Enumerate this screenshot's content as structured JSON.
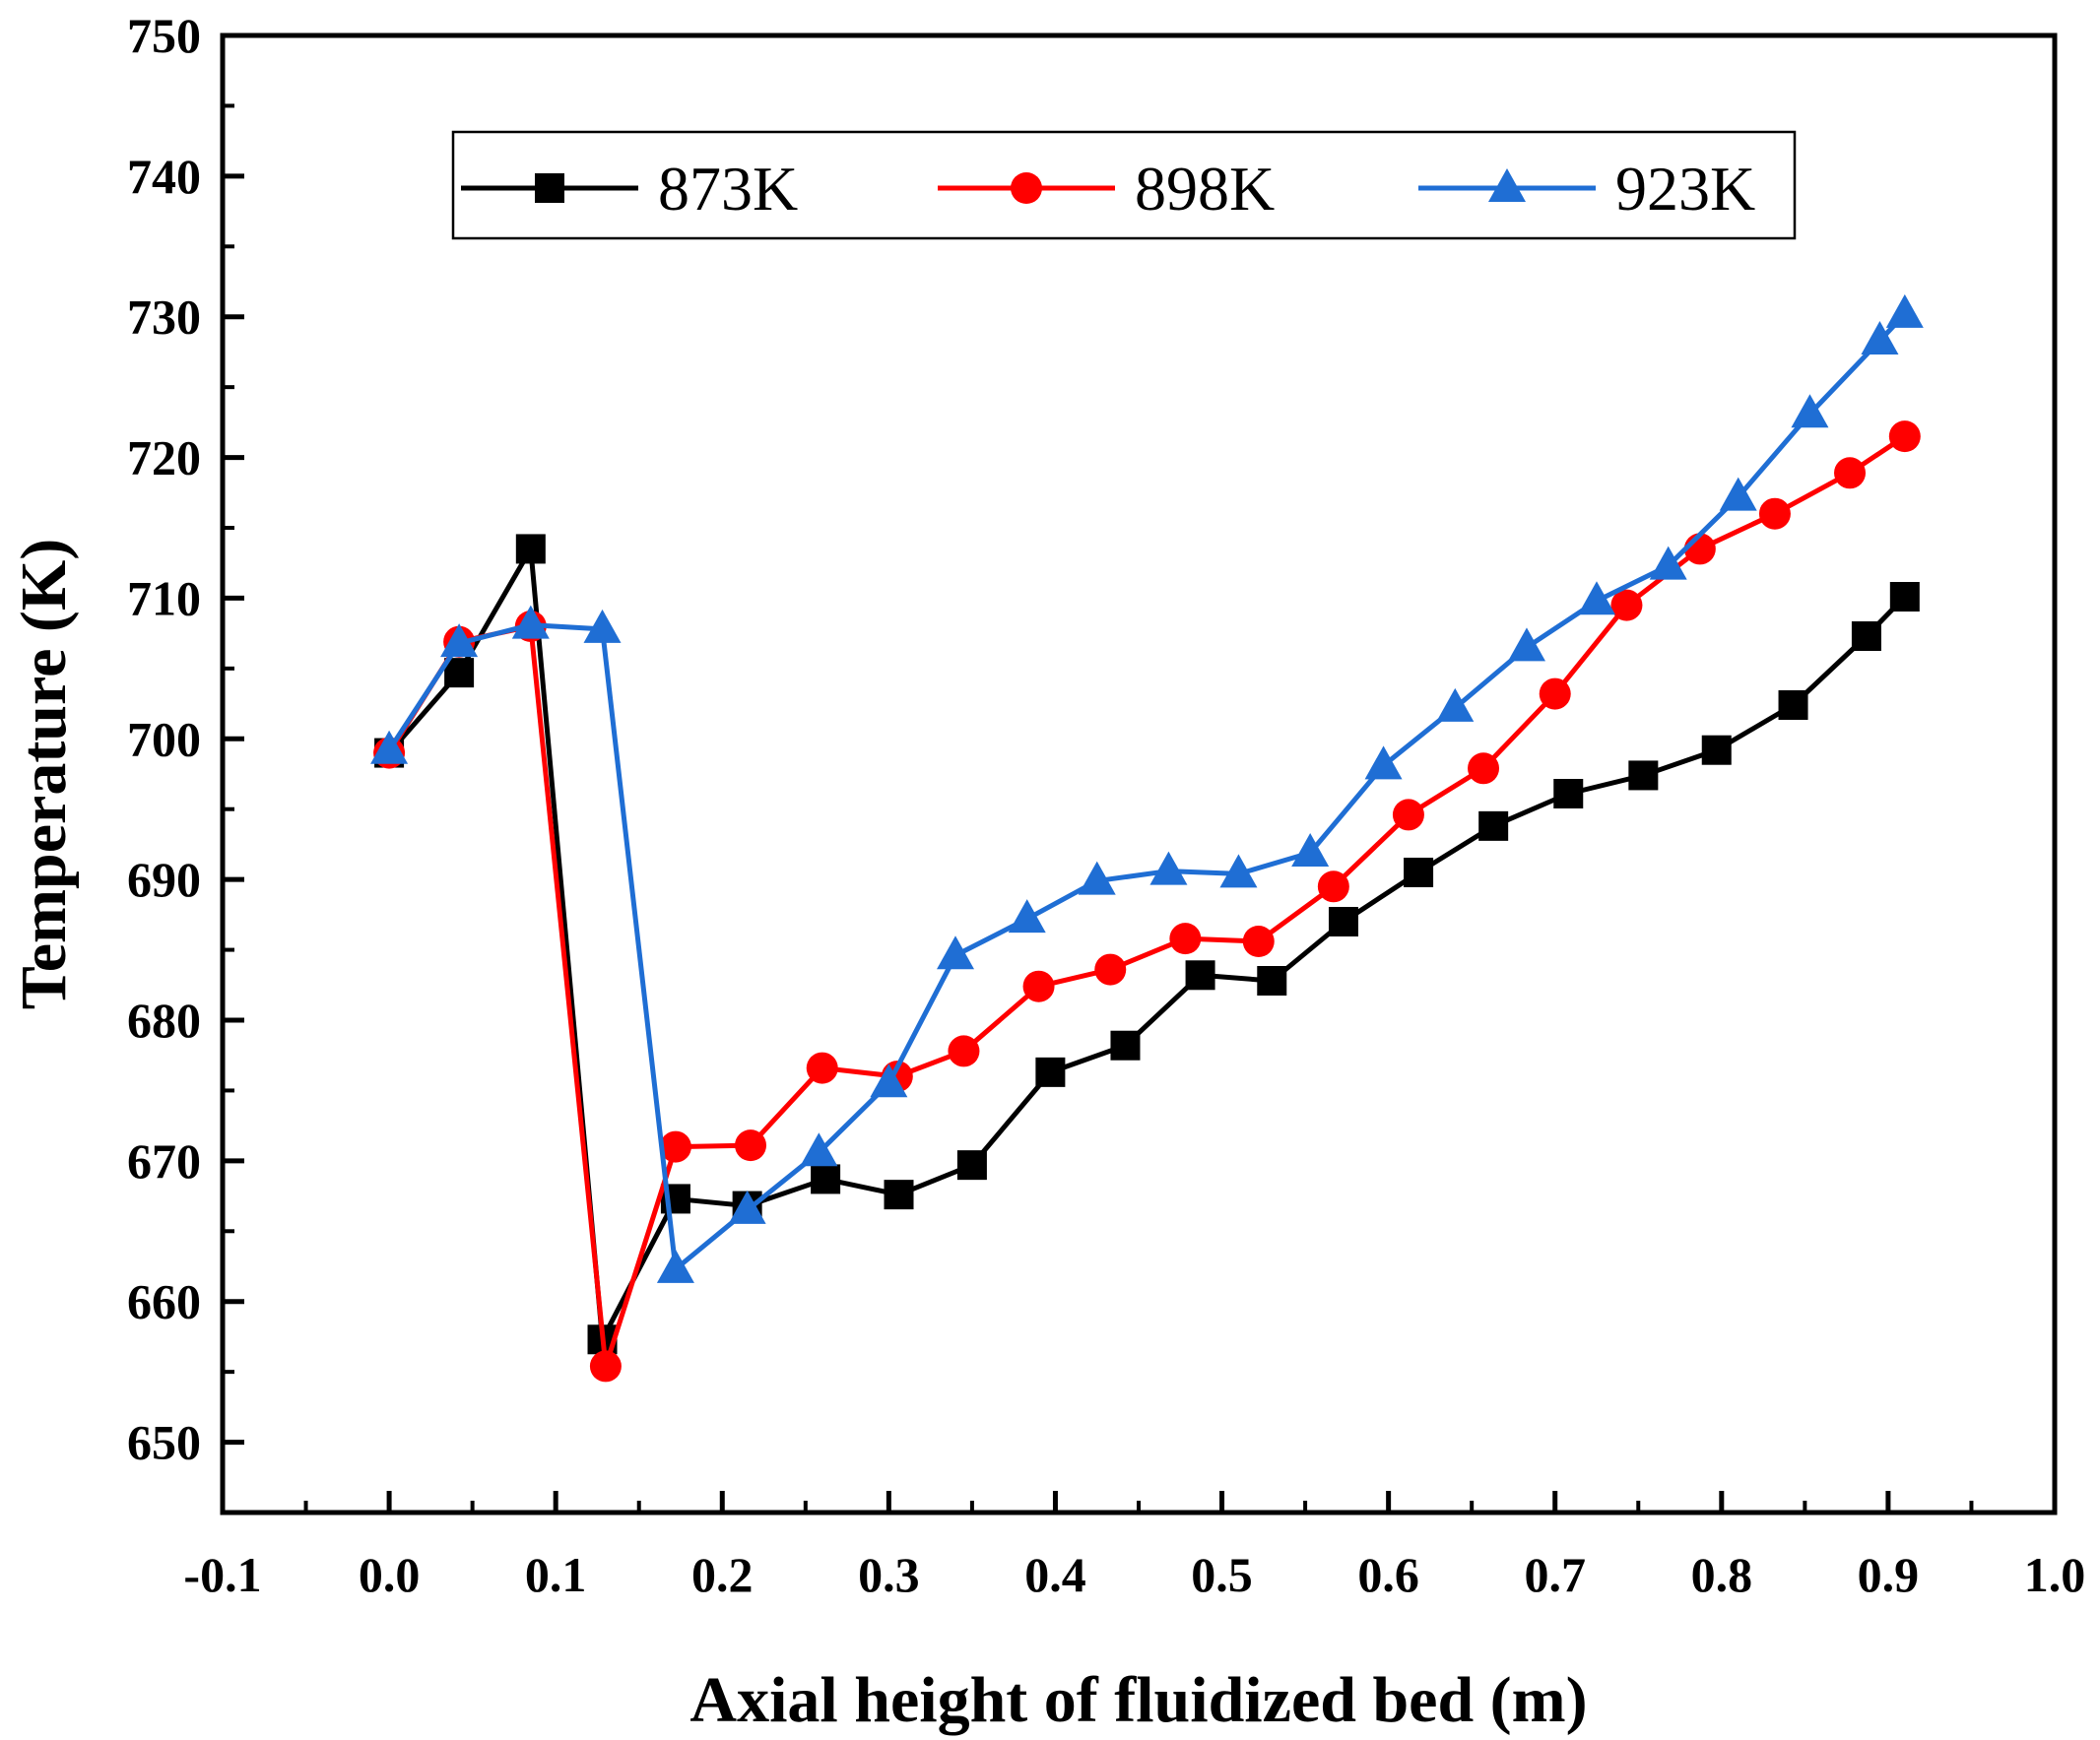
{
  "chart_data": {
    "type": "line",
    "title": "",
    "xlabel": "Axial height of fluidized bed (m)",
    "ylabel": "Temperature (K)",
    "xlim": [
      -0.1,
      1.0
    ],
    "ylim": [
      645,
      750
    ],
    "xticks": [
      -0.1,
      0.0,
      0.1,
      0.2,
      0.3,
      0.4,
      0.5,
      0.6,
      0.7,
      0.8,
      0.9,
      1.0
    ],
    "xtick_labels": [
      "-0.1",
      "0.0",
      "0.1",
      "0.2",
      "0.3",
      "0.4",
      "0.5",
      "0.6",
      "0.7",
      "0.8",
      "0.9",
      "1.0"
    ],
    "yticks": [
      650,
      660,
      670,
      680,
      690,
      700,
      710,
      720,
      730,
      740,
      750
    ],
    "ytick_labels": [
      "650",
      "660",
      "670",
      "680",
      "690",
      "700",
      "710",
      "720",
      "730",
      "740",
      "750"
    ],
    "grid": false,
    "legend_position": "top",
    "series": [
      {
        "name": "873K",
        "color": "#000000",
        "marker": "square",
        "x": [
          0.0,
          0.042,
          0.085,
          0.128,
          0.172,
          0.215,
          0.262,
          0.306,
          0.35,
          0.397,
          0.442,
          0.487,
          0.53,
          0.573,
          0.618,
          0.663,
          0.708,
          0.753,
          0.797,
          0.843,
          0.887,
          0.91
        ],
        "y": [
          699.0,
          704.7,
          713.5,
          657.3,
          667.3,
          666.8,
          668.7,
          667.6,
          669.7,
          676.3,
          678.2,
          683.2,
          682.8,
          687.0,
          690.5,
          693.8,
          696.1,
          697.4,
          699.2,
          702.4,
          707.3,
          710.1
        ]
      },
      {
        "name": "898K",
        "color": "#ff0000",
        "marker": "circle",
        "x": [
          0.0,
          0.042,
          0.085,
          0.13,
          0.172,
          0.217,
          0.26,
          0.305,
          0.345,
          0.39,
          0.433,
          0.478,
          0.522,
          0.567,
          0.612,
          0.657,
          0.7,
          0.743,
          0.787,
          0.832,
          0.877,
          0.91
        ],
        "y": [
          699.0,
          706.9,
          708.0,
          655.4,
          671.0,
          671.1,
          676.6,
          676.0,
          677.8,
          682.4,
          683.6,
          685.8,
          685.6,
          689.5,
          694.6,
          697.9,
          703.2,
          709.5,
          713.5,
          716.0,
          718.9,
          721.5
        ]
      },
      {
        "name": "923K",
        "color": "#1f6ed4",
        "marker": "triangle",
        "x": [
          0.0,
          0.042,
          0.085,
          0.128,
          0.172,
          0.215,
          0.258,
          0.3,
          0.34,
          0.383,
          0.425,
          0.468,
          0.51,
          0.553,
          0.597,
          0.64,
          0.683,
          0.725,
          0.768,
          0.81,
          0.853,
          0.895,
          0.91
        ],
        "y": [
          699.2,
          706.8,
          708.1,
          707.8,
          662.3,
          666.5,
          670.6,
          675.5,
          684.6,
          687.2,
          689.9,
          690.6,
          690.4,
          691.9,
          698.1,
          702.2,
          706.5,
          709.8,
          712.3,
          717.2,
          723.1,
          728.3,
          730.2
        ]
      }
    ]
  }
}
